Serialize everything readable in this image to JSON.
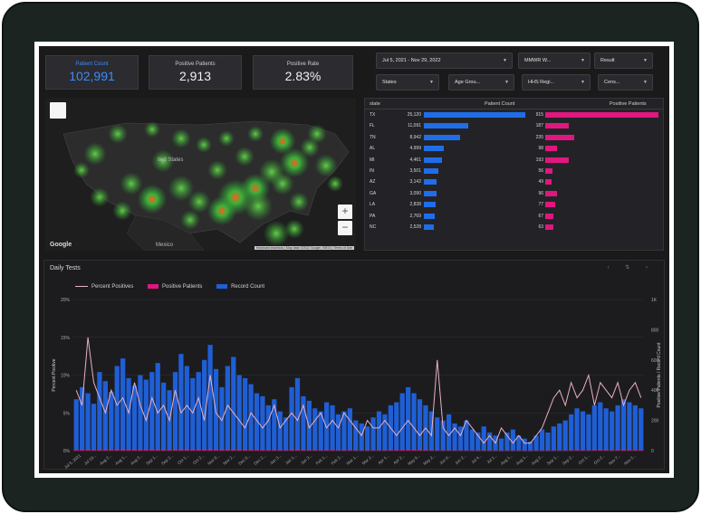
{
  "kpis": [
    {
      "label": "Patient Count",
      "value": "102,991"
    },
    {
      "label": "Positive Patients",
      "value": "2,913"
    },
    {
      "label": "Positive Rate",
      "value": "2.83%"
    }
  ],
  "filters": {
    "date_range": "Jul 5, 2021 - Nov 29, 2022",
    "mmwr": "MMWR W...",
    "result": "Result",
    "states": "States",
    "age_group": "Age Grou...",
    "hhs_region": "HHS Regi...",
    "census": "Cens..."
  },
  "map": {
    "country_label": "ited States",
    "mexico_label": "Mexico",
    "logo": "Google",
    "attribution": "Keyboard shortcuts | Map data ©2022 Google, INEGI | Terms of Use",
    "zoom_in": "+",
    "zoom_out": "−"
  },
  "state_table": {
    "headers": {
      "state": "state",
      "patient_count": "Patient Count",
      "positive_patients": "Positive Patients"
    },
    "max_count": 25120,
    "max_positive": 915,
    "rows": [
      {
        "state": "TX",
        "count": 25120,
        "count_label": "25,120",
        "positive": 915,
        "positive_label": "915"
      },
      {
        "state": "FL",
        "count": 11091,
        "count_label": "11,091",
        "positive": 187,
        "positive_label": "187"
      },
      {
        "state": "TN",
        "count": 8942,
        "count_label": "8,942",
        "positive": 235,
        "positive_label": "235"
      },
      {
        "state": "AL",
        "count": 4999,
        "count_label": "4,999",
        "positive": 98,
        "positive_label": "98"
      },
      {
        "state": "MI",
        "count": 4461,
        "count_label": "4,461",
        "positive": 193,
        "positive_label": "193"
      },
      {
        "state": "IN",
        "count": 3501,
        "count_label": "3,501",
        "positive": 56,
        "positive_label": "56"
      },
      {
        "state": "AZ",
        "count": 3142,
        "count_label": "3,142",
        "positive": 49,
        "positive_label": "49"
      },
      {
        "state": "GA",
        "count": 3090,
        "count_label": "3,090",
        "positive": 96,
        "positive_label": "96"
      },
      {
        "state": "LA",
        "count": 2838,
        "count_label": "2,838",
        "positive": 77,
        "positive_label": "77"
      },
      {
        "state": "PA",
        "count": 2769,
        "count_label": "2,769",
        "positive": 67,
        "positive_label": "67"
      },
      {
        "state": "NC",
        "count": 2528,
        "count_label": "2,528",
        "positive": 63,
        "positive_label": "63"
      }
    ]
  },
  "chart_data": {
    "type": "bar",
    "title": "Daily Tests",
    "legend": [
      "Percent Positives",
      "Positive Patients",
      "Record Count"
    ],
    "ylabel_left": "Percent Positive",
    "ylabel_right": "Positive Patients / Record Count",
    "left_ticks": [
      "20%",
      "15%",
      "10%",
      "5%",
      "0%"
    ],
    "right_ticks": [
      "1K",
      "800",
      "600",
      "400",
      "200",
      "0"
    ],
    "left_ylim": [
      0,
      20
    ],
    "right_ylim": [
      0,
      1000
    ],
    "x_labels": [
      "Jul 5, 2021",
      "Jul 19...",
      "Aug 2...",
      "Aug 1...",
      "Aug 3...",
      "Sep 1...",
      "Sep 2...",
      "Oct 1...",
      "Oct 2...",
      "Nov 8...",
      "Nov 2...",
      "Dec 6...",
      "Dec 2...",
      "Jan 3...",
      "Jan 1...",
      "Jan 3...",
      "Feb 1...",
      "Feb 2...",
      "Mar 1...",
      "Mar 2...",
      "Apr 1...",
      "Apr 2...",
      "May 9...",
      "May 2...",
      "Jun 6...",
      "Jun 2...",
      "Jul 4...",
      "Jul 1...",
      "Aug 1...",
      "Aug 1...",
      "Aug 2...",
      "Sep 1...",
      "Sep 2...",
      "Oct 1...",
      "Oct 2...",
      "Nov 7...",
      "Nov 2..."
    ],
    "colors": {
      "record_count": "#1f5fd6",
      "positive_patients": "#e0177f",
      "percent_positive": "#e8b0c2"
    },
    "record_count": [
      340,
      420,
      380,
      310,
      520,
      460,
      390,
      560,
      610,
      480,
      430,
      500,
      470,
      520,
      580,
      450,
      400,
      520,
      640,
      560,
      480,
      520,
      600,
      700,
      540,
      420,
      560,
      620,
      500,
      480,
      440,
      380,
      360,
      300,
      340,
      260,
      220,
      420,
      480,
      360,
      330,
      280,
      260,
      320,
      300,
      240,
      260,
      280,
      200,
      180,
      160,
      220,
      260,
      240,
      300,
      320,
      380,
      420,
      380,
      340,
      300,
      260,
      220,
      200,
      240,
      180,
      160,
      200,
      140,
      120,
      160,
      120,
      100,
      80,
      120,
      140,
      100,
      80,
      60,
      100,
      140,
      120,
      160,
      180,
      200,
      240,
      280,
      260,
      240,
      300,
      320,
      280,
      260,
      300,
      340,
      320,
      300,
      280
    ],
    "positive_patients": [
      6,
      8,
      7,
      5,
      9,
      8,
      6,
      10,
      11,
      9,
      8,
      9,
      8,
      9,
      10,
      8,
      7,
      9,
      11,
      10,
      8,
      9,
      10,
      12,
      9,
      7,
      9,
      10,
      8,
      8,
      7,
      6,
      6,
      5,
      6,
      4,
      4,
      7,
      8,
      6,
      5,
      5,
      4,
      5,
      5,
      4,
      4,
      5,
      3,
      3,
      3,
      4,
      4,
      4,
      5,
      5,
      6,
      7,
      6,
      6,
      5,
      4,
      4,
      3,
      4,
      3,
      3,
      3,
      2,
      2,
      3,
      2,
      2,
      1,
      2,
      2,
      2,
      1,
      1,
      2,
      2,
      2,
      3,
      3,
      3,
      4,
      5,
      4,
      4,
      5,
      5,
      5,
      4,
      5,
      6,
      5,
      5,
      5
    ],
    "percent_positive": [
      8,
      6,
      15,
      9,
      7,
      5,
      8,
      6,
      7,
      5,
      9,
      6,
      4,
      7,
      5,
      6,
      4,
      8,
      5,
      6,
      5,
      7,
      4,
      10,
      5,
      4,
      6,
      5,
      4,
      3,
      5,
      4,
      3,
      4,
      6,
      3,
      4,
      5,
      4,
      6,
      3,
      4,
      5,
      3,
      4,
      3,
      5,
      4,
      3,
      2,
      4,
      3,
      3,
      4,
      3,
      2,
      3,
      4,
      3,
      2,
      3,
      2,
      12,
      3,
      2,
      3,
      2,
      4,
      3,
      2,
      1,
      2,
      1,
      3,
      2,
      1,
      2,
      1,
      1,
      2,
      3,
      5,
      7,
      8,
      6,
      9,
      7,
      8,
      10,
      6,
      9,
      8,
      7,
      9,
      6,
      8,
      9,
      7
    ]
  }
}
